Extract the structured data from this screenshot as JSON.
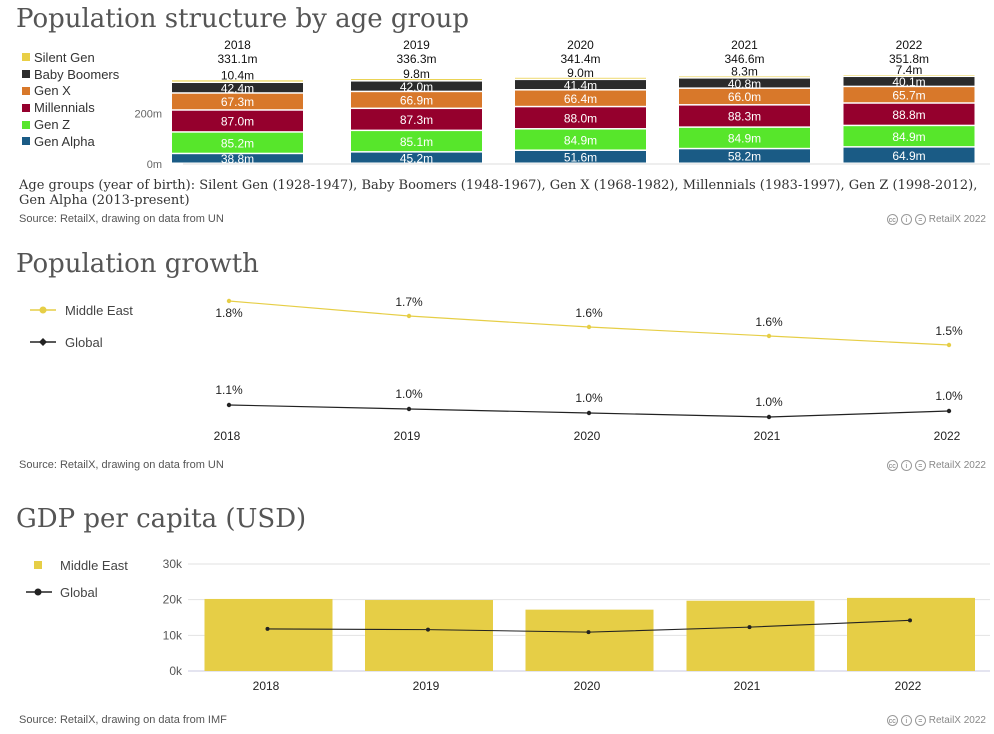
{
  "sections": {
    "age": {
      "title": "Population structure by age group",
      "note": "Age groups (year of birth): Silent Gen (1928-1947), Baby Boomers (1948-1967), Gen X (1968-1982), Millennials (1983-1997), Gen Z (1998-2012), Gen Alpha (2013-present)",
      "source": "Source: RetailX, drawing on data from UN"
    },
    "growth": {
      "title": "Population growth",
      "source": "Source: RetailX, drawing on data from UN"
    },
    "gdp": {
      "title": "GDP per capita (USD)",
      "source": "Source: RetailX, drawing on data from IMF"
    },
    "brand": "RetailX 2022"
  },
  "colors": {
    "silent": "#e9cf46",
    "boomers": "#2b2b2b",
    "genx": "#d8782a",
    "millennials": "#95002d",
    "genz": "#57e62b",
    "alpha": "#1a5b85",
    "middle_east": "#e6ce46",
    "global": "#222222"
  },
  "chart_data": [
    {
      "type": "bar",
      "stacked": true,
      "title": "Population structure by age group",
      "categories": [
        "2018",
        "2019",
        "2020",
        "2021",
        "2022"
      ],
      "totals": [
        "331.1m",
        "336.3m",
        "341.4m",
        "346.6m",
        "351.8m"
      ],
      "series": [
        {
          "name": "Gen Alpha",
          "color_key": "alpha",
          "values": [
            38.8,
            45.2,
            51.6,
            58.2,
            64.9
          ],
          "labels": [
            "38.8m",
            "45.2m",
            "51.6m",
            "58.2m",
            "64.9m"
          ]
        },
        {
          "name": "Gen Z",
          "color_key": "genz",
          "values": [
            85.2,
            85.1,
            84.9,
            84.9,
            84.9
          ],
          "labels": [
            "85.2m",
            "85.1m",
            "84.9m",
            "84.9m",
            "84.9m"
          ]
        },
        {
          "name": "Millennials",
          "color_key": "millennials",
          "values": [
            87.0,
            87.3,
            88.0,
            88.3,
            88.8
          ],
          "labels": [
            "87.0m",
            "87.3m",
            "88.0m",
            "88.3m",
            "88.8m"
          ]
        },
        {
          "name": "Gen X",
          "color_key": "genx",
          "values": [
            67.3,
            66.9,
            66.4,
            66.0,
            65.7
          ],
          "labels": [
            "67.3m",
            "66.9m",
            "66.4m",
            "66.0m",
            "65.7m"
          ]
        },
        {
          "name": "Baby Boomers",
          "color_key": "boomers",
          "values": [
            42.4,
            42.0,
            41.4,
            40.8,
            40.1
          ],
          "labels": [
            "42.4m",
            "42.0m",
            "41.4m",
            "40.8m",
            "40.1m"
          ]
        },
        {
          "name": "Silent Gen",
          "color_key": "silent",
          "values": [
            10.4,
            9.8,
            9.0,
            8.3,
            7.4
          ],
          "labels": [
            "10.4m",
            "9.8m",
            "9.0m",
            "8.3m",
            "7.4m"
          ]
        }
      ],
      "legend": [
        "Silent Gen",
        "Baby Boomers",
        "Gen X",
        "Millennials",
        "Gen Z",
        "Gen Alpha"
      ],
      "y_ticks": [
        {
          "value": 0,
          "label": "0m"
        },
        {
          "value": 200,
          "label": "200m"
        }
      ],
      "ylim": [
        0,
        400
      ]
    },
    {
      "type": "line",
      "title": "Population growth",
      "categories": [
        "2018",
        "2019",
        "2020",
        "2021",
        "2022"
      ],
      "series": [
        {
          "name": "Middle East",
          "color_key": "middle_east",
          "values": [
            1.8,
            1.7,
            1.6,
            1.6,
            1.5
          ],
          "labels": [
            "1.8%",
            "1.7%",
            "1.6%",
            "1.6%",
            "1.5%"
          ]
        },
        {
          "name": "Global",
          "color_key": "global",
          "values": [
            1.1,
            1.0,
            1.0,
            1.0,
            1.0
          ],
          "labels": [
            "1.1%",
            "1.0%",
            "1.0%",
            "1.0%",
            "1.0%"
          ]
        }
      ],
      "legend": [
        "Middle East",
        "Global"
      ]
    },
    {
      "type": "bar",
      "title": "GDP per capita (USD)",
      "categories": [
        "2018",
        "2019",
        "2020",
        "2021",
        "2022"
      ],
      "series": [
        {
          "name": "Middle East",
          "kind": "bar",
          "color_key": "middle_east",
          "values": [
            20200,
            19900,
            17200,
            19700,
            20500
          ]
        },
        {
          "name": "Global",
          "kind": "line",
          "color_key": "global",
          "values": [
            11800,
            11600,
            10900,
            12300,
            14200
          ]
        }
      ],
      "legend": [
        "Middle East",
        "Global"
      ],
      "y_ticks": [
        {
          "value": 0,
          "label": "0k"
        },
        {
          "value": 10000,
          "label": "10k"
        },
        {
          "value": 20000,
          "label": "20k"
        },
        {
          "value": 30000,
          "label": "30k"
        }
      ],
      "ylim": [
        0,
        30000
      ]
    }
  ]
}
